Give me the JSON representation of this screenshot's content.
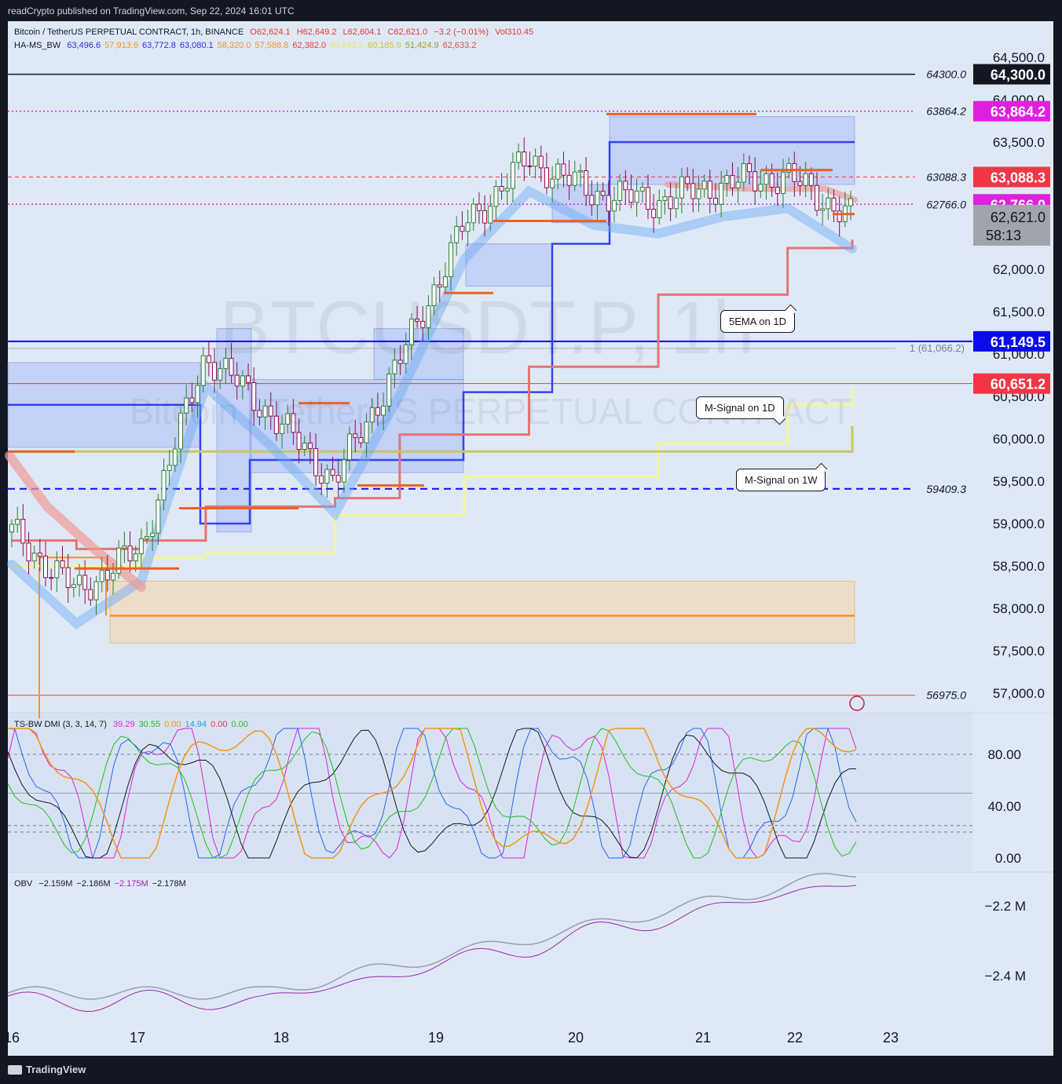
{
  "header": {
    "published": "readCrypto published on TradingView.com, Sep 22, 2024 16:01 UTC",
    "symbol_line": "Bitcoin / TetherUS PERPETUAL CONTRACT, 1h, BINANCE",
    "o": "O62,624.1",
    "h": "H62,649.2",
    "l": "L62,604.1",
    "c": "C62,621.0",
    "chg": "−3.2 (−0.01%)",
    "vol": "Vol310.45",
    "ha_name": "HA-MS_BW",
    "ha_values": [
      {
        "v": "63,496.6",
        "color": "#2a2ee8"
      },
      {
        "v": "57,913.6",
        "color": "#f7931e"
      },
      {
        "v": "63,772.8",
        "color": "#2a2ee8"
      },
      {
        "v": "63,080.1",
        "color": "#2a2ee8"
      },
      {
        "v": "58,320.0",
        "color": "#f7931e"
      },
      {
        "v": "57,588.8",
        "color": "#f7931e"
      },
      {
        "v": "62,382.0",
        "color": "#e53935"
      },
      {
        "v": "60,642.5",
        "color": "#e8e860"
      },
      {
        "v": "60,185.9",
        "color": "#c8c830"
      },
      {
        "v": "51,424.9",
        "color": "#9e9e20"
      },
      {
        "v": "62,633.2",
        "color": "#e05030"
      }
    ]
  },
  "watermark": {
    "big": "BTCUSDT.P, 1h",
    "small": "Bitcoin / TetherUS PERPETUAL CONTRACT"
  },
  "price_axis": [
    "64,500.0",
    "64,000.0",
    "63,500.0",
    "62,000.0",
    "61,500.0",
    "61,000.0",
    "60,500.0",
    "60,000.0",
    "59,500.0",
    "59,000.0",
    "58,500.0",
    "58,000.0",
    "57,500.0",
    "57,000.0"
  ],
  "price_tags": [
    {
      "label": "64,300.0",
      "bg": "#131722",
      "fg": "#ffffff",
      "y": 64300
    },
    {
      "label": "63,864.2",
      "bg": "#e020e0",
      "fg": "#ffffff",
      "y": 63864.2
    },
    {
      "label": "63,088.3",
      "bg": "#f23645",
      "fg": "#ffffff",
      "y": 63088.3
    },
    {
      "label": "62,766.0",
      "bg": "#e020e0",
      "fg": "#ffffff",
      "y": 62766
    },
    {
      "label": "61,149.5",
      "bg": "#0b0bf0",
      "fg": "#ffffff",
      "y": 61149.5
    },
    {
      "label": "60,651.2",
      "bg": "#f23645",
      "fg": "#ffffff",
      "y": 60651.2
    }
  ],
  "last_price": {
    "label": "62,621.0",
    "countdown": "58:13",
    "y": 62621
  },
  "line_labels": [
    {
      "label": "64300.0",
      "y": 64300
    },
    {
      "label": "63864.2",
      "y": 63864.2
    },
    {
      "label": "63088.3",
      "y": 63088.3
    },
    {
      "label": "62766.0",
      "y": 62766
    },
    {
      "label": "59409.3",
      "y": 59409.3
    },
    {
      "label": "56975.0",
      "y": 56975
    }
  ],
  "fib_label": "1 (61,066.2)",
  "callouts": {
    "ema5": "5EMA on 1D",
    "msig1d": "M-Signal on 1D",
    "msig1w": "M-Signal on 1W"
  },
  "dmi": {
    "name": "TS-BW DMI (3, 3, 14, 7)",
    "values": [
      {
        "v": "39.29",
        "color": "#e020e0"
      },
      {
        "v": "30.55",
        "color": "#20c020"
      },
      {
        "v": "0.00",
        "color": "#f7931e"
      },
      {
        "v": "14.94",
        "color": "#20a0d0"
      },
      {
        "v": "0.00",
        "color": "#f23645"
      },
      {
        "v": "0.00",
        "color": "#20c020"
      }
    ],
    "axis": [
      "80.00",
      "40.00",
      "0.00"
    ]
  },
  "obv": {
    "name": "OBV",
    "values": [
      {
        "v": "−2.159M",
        "color": "#131722"
      },
      {
        "v": "−2.186M",
        "color": "#131722"
      },
      {
        "v": "−2.175M",
        "color": "#9c27b0"
      },
      {
        "v": "−2.178M",
        "color": "#131722"
      }
    ],
    "axis": [
      "−2.2 M",
      "−2.4 M"
    ]
  },
  "time_axis": [
    "16",
    "17",
    "18",
    "19",
    "20",
    "21",
    "22",
    "23"
  ],
  "footer": {
    "brand": "TradingView"
  },
  "colors": {
    "bg": "#dfe9f6",
    "up": "#4caf50",
    "down": "#c2185b",
    "ema": "#e57373",
    "msig": "#f0f080"
  },
  "chart_data": {
    "type": "candlestick",
    "title": "Bitcoin / TetherUS PERPETUAL CONTRACT, 1h, BINANCE",
    "ylim": [
      56800,
      64700
    ],
    "x": [
      "16",
      "16.5",
      "17",
      "17.5",
      "18",
      "18.5",
      "19",
      "19.5",
      "20",
      "20.5",
      "21",
      "21.5",
      "22",
      "22.5"
    ],
    "close": [
      58900,
      58200,
      58700,
      61000,
      60300,
      59500,
      60900,
      62500,
      63300,
      62900,
      62800,
      63000,
      63100,
      62621
    ],
    "series": [
      {
        "name": "5EMA on 1D",
        "values": [
          58800,
          58700,
          58800,
          59200,
          59200,
          59300,
          60050,
          60050,
          60850,
          60850,
          61700,
          61700,
          62250,
          62350
        ]
      },
      {
        "name": "M-Signal on 1D",
        "values": [
          58500,
          58500,
          58600,
          58650,
          58650,
          59100,
          59100,
          59550,
          59550,
          59550,
          59950,
          59950,
          60400,
          60600
        ]
      },
      {
        "name": "M-Signal on 1W",
        "values": [
          59850,
          59850,
          59850,
          59850,
          59850,
          59850,
          59850,
          59850,
          59850,
          59850,
          59850,
          59850,
          59850,
          60150
        ]
      }
    ],
    "levels": [
      64300,
      63864.2,
      63088.3,
      62766,
      61149.5,
      60651.2,
      59409.3,
      56975
    ]
  }
}
